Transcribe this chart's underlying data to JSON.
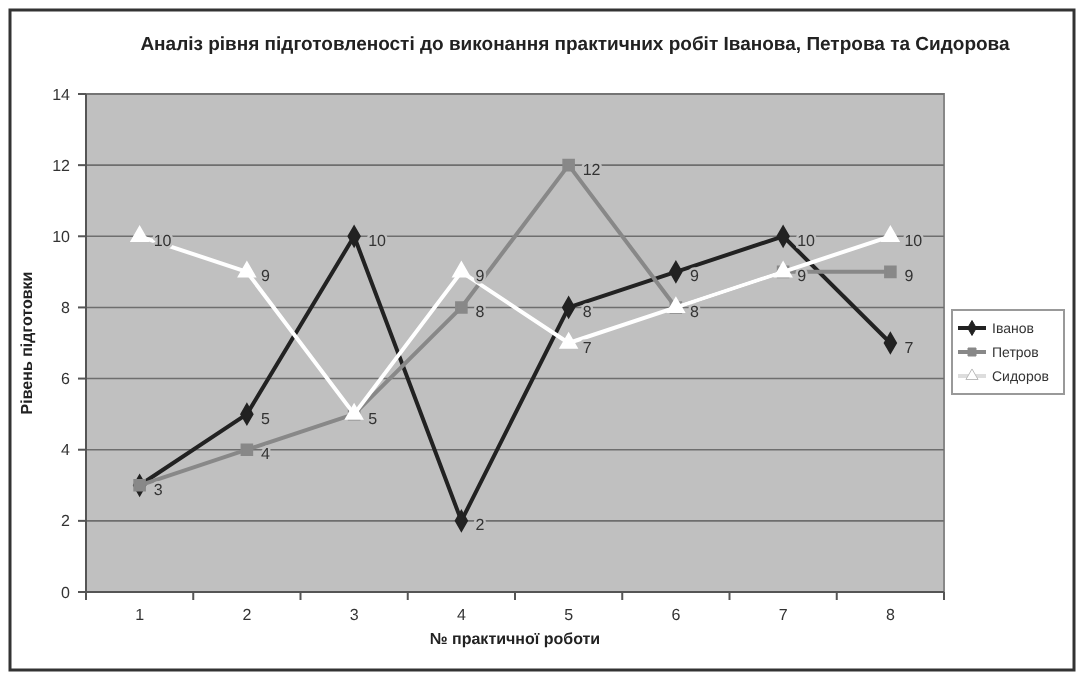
{
  "chart_data": {
    "type": "line",
    "title": "Аналіз рівня підготовленості до виконання практичних робіт Іванова, Петрова та Сидорова",
    "xlabel": "№ практичної роботи",
    "ylabel": "Рівень підготовки",
    "categories": [
      "1",
      "2",
      "3",
      "4",
      "5",
      "6",
      "7",
      "8"
    ],
    "series": [
      {
        "name": "Іванов",
        "color": "#222222",
        "marker": "diamond",
        "values": [
          3,
          5,
          10,
          2,
          8,
          9,
          10,
          7
        ],
        "value_labels": [
          null,
          "5",
          "10",
          "2",
          "8",
          "9",
          "10",
          "7"
        ]
      },
      {
        "name": "Петров",
        "color": "#888888",
        "marker": "square",
        "values": [
          3,
          4,
          5,
          8,
          12,
          8,
          9,
          9
        ],
        "value_labels": [
          "3",
          "4",
          "5",
          "8",
          "12",
          "8",
          "9",
          "9"
        ]
      },
      {
        "name": "Сидоров",
        "color": "#ffffff",
        "marker": "triangle",
        "values": [
          10,
          9,
          5,
          9,
          7,
          8,
          9,
          10
        ],
        "value_labels": [
          "10",
          "9",
          null,
          "9",
          "7",
          null,
          null,
          "10"
        ]
      }
    ],
    "ylim": [
      0,
      14
    ],
    "yticks": [
      0,
      2,
      4,
      6,
      8,
      10,
      12,
      14
    ],
    "grid": "y",
    "legend": "right"
  }
}
